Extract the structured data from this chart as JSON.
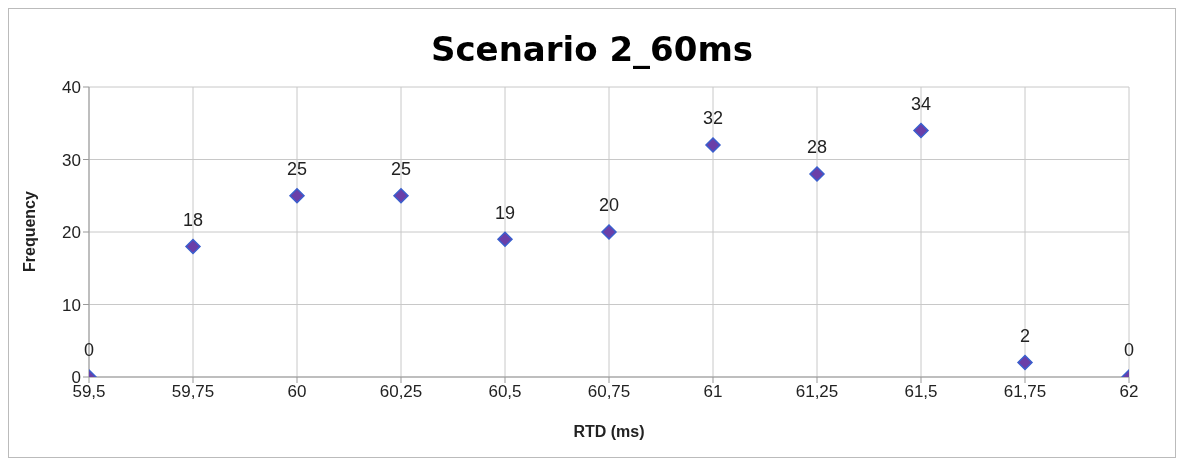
{
  "chart_data": {
    "type": "scatter",
    "title": "Scenario 2_60ms",
    "xlabel": "RTD (ms)",
    "ylabel": "Frequency",
    "x": [
      59.5,
      59.75,
      60,
      60.25,
      60.5,
      60.75,
      61,
      61.25,
      61.5,
      61.75,
      62
    ],
    "values": [
      0,
      18,
      25,
      25,
      19,
      20,
      32,
      28,
      34,
      2,
      0
    ],
    "color": "#6a3fa8",
    "xlim": [
      59.5,
      62
    ],
    "xticks": [
      {
        "value": 59.5,
        "label": "59,5"
      },
      {
        "value": 59.75,
        "label": "59,75"
      },
      {
        "value": 60,
        "label": "60"
      },
      {
        "value": 60.25,
        "label": "60,25"
      },
      {
        "value": 60.5,
        "label": "60,5"
      },
      {
        "value": 60.75,
        "label": "60,75"
      },
      {
        "value": 61,
        "label": "61"
      },
      {
        "value": 61.25,
        "label": "61,25"
      },
      {
        "value": 61.5,
        "label": "61,5"
      },
      {
        "value": 61.75,
        "label": "61,75"
      },
      {
        "value": 62,
        "label": "62"
      }
    ],
    "ylim": [
      0,
      40
    ],
    "yticks": [
      0,
      10,
      20,
      30,
      40
    ],
    "grid": true,
    "marker": "diamond",
    "data_labels": true,
    "legend": false
  }
}
